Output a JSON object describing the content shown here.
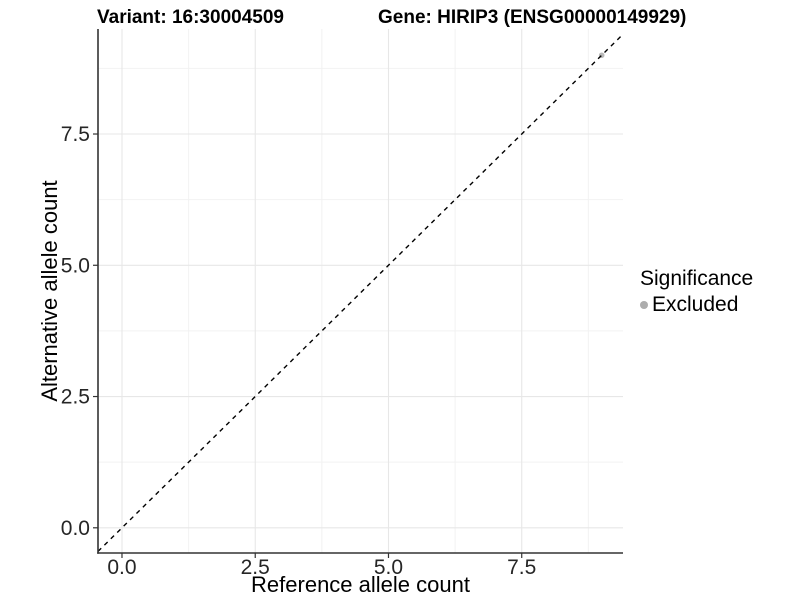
{
  "chart_data": {
    "type": "scatter",
    "title_left": "Variant: 16:30004509",
    "title_right": "Gene: HIRIP3 (ENSG00000149929)",
    "xlabel": "Reference allele count",
    "ylabel": "Alternative allele count",
    "xlim": [
      -0.45,
      9.4
    ],
    "ylim": [
      -0.48,
      9.5
    ],
    "x_ticks": {
      "values": [
        0.0,
        2.5,
        5.0,
        7.5
      ],
      "labels": [
        "0.0",
        "2.5",
        "5.0",
        "7.5"
      ]
    },
    "y_ticks": {
      "values": [
        0.0,
        2.5,
        5.0,
        7.5
      ],
      "labels": [
        "0.0",
        "2.5",
        "5.0",
        "7.5"
      ]
    },
    "x_minor_ticks": [
      1.25,
      3.75,
      6.25,
      8.75
    ],
    "y_minor_ticks": [
      1.25,
      3.75,
      6.25,
      8.75
    ],
    "grid": "major+minor",
    "reference_line": {
      "kind": "identity y=x",
      "style": "dashed",
      "color": "#000000",
      "from": [
        -0.45,
        -0.45
      ],
      "to": [
        9.4,
        9.4
      ]
    },
    "series": [
      {
        "name": "Excluded",
        "color": "#b9b9b9",
        "points": [
          {
            "x": 9,
            "y": 9
          }
        ]
      }
    ],
    "legend": {
      "title": "Significance",
      "position": "right",
      "entries": [
        {
          "label": "Excluded",
          "marker": "circle",
          "color": "#adadad"
        }
      ]
    },
    "style": {
      "panel_background": "#ffffff",
      "grid_major": "#e7e7e7",
      "grid_minor": "#f2f2f2",
      "axis_line": "#333333",
      "tick_mark": "#333333",
      "tick_label_color": "#262626",
      "point_radius": 2.8
    }
  }
}
